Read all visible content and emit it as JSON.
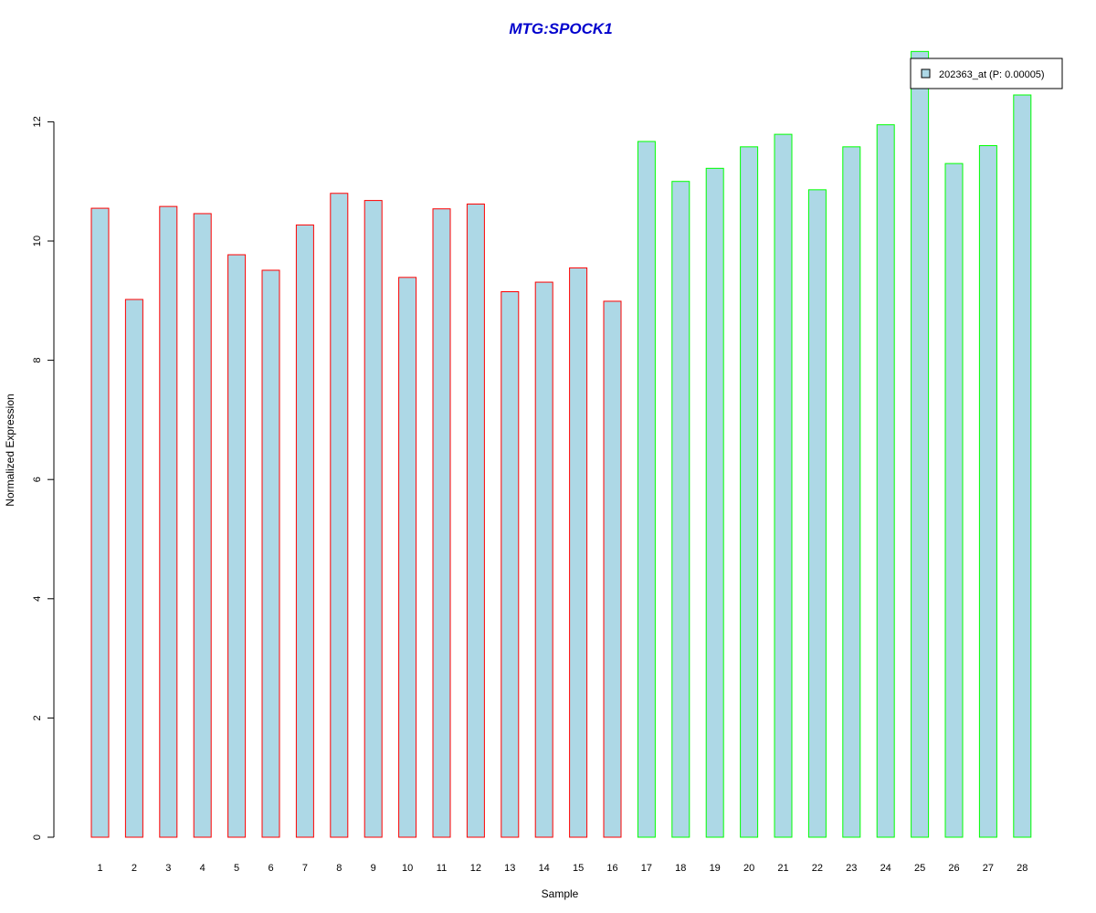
{
  "chart_data": {
    "type": "bar",
    "title": "MTG:SPOCK1",
    "xlabel": "Sample",
    "ylabel": "Normalized Expression",
    "categories": [
      "1",
      "2",
      "3",
      "4",
      "5",
      "6",
      "7",
      "8",
      "9",
      "10",
      "11",
      "12",
      "13",
      "14",
      "15",
      "16",
      "17",
      "18",
      "19",
      "20",
      "21",
      "22",
      "23",
      "24",
      "25",
      "26",
      "27",
      "28"
    ],
    "series": [
      {
        "name": "202363_at (P: 0.00005)",
        "values": [
          10.55,
          9.02,
          10.58,
          10.46,
          9.77,
          9.51,
          10.27,
          10.8,
          10.68,
          9.39,
          10.54,
          10.62,
          9.15,
          9.31,
          9.55,
          8.99,
          11.67,
          11.0,
          11.22,
          11.58,
          11.79,
          10.86,
          11.58,
          11.95,
          13.18,
          11.3,
          11.6,
          12.45
        ]
      }
    ],
    "ylim": [
      0,
      13.18
    ],
    "yticks": [
      "0",
      "2",
      "4",
      "6",
      "8",
      "10",
      "12"
    ],
    "grid": false,
    "legend_position": "top-right",
    "bar_groups": [
      {
        "samples": "1-16",
        "border_color": "#ff0000"
      },
      {
        "samples": "17-28",
        "border_color": "#00ff00"
      }
    ],
    "colors": {
      "bar_fill": "#add8e6",
      "title": "#0000cd",
      "group_a_border": "#ff0000",
      "group_b_border": "#00ff00"
    }
  }
}
